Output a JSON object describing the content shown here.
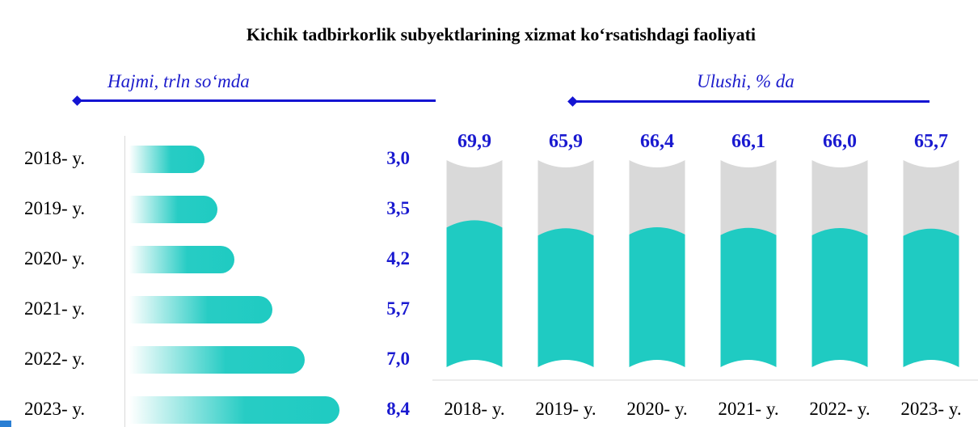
{
  "title": "Kichik tadbirkorlik subyektlarining xizmat ko‘rsatishdagi faoliyati",
  "colors": {
    "accent": "#1414d2",
    "bar": "#1fcbc2",
    "bar_bg": "#d9d9d9",
    "value_text": "#1a1ad0"
  },
  "chart_data": [
    {
      "type": "bar",
      "orientation": "horizontal",
      "title": "",
      "xlabel": "Hajmi, trln so‘mda",
      "ylabel": "",
      "categories": [
        "2018- y.",
        "2019- y.",
        "2020- y.",
        "2021- y.",
        "2022- y.",
        "2023- y."
      ],
      "values": [
        3.0,
        3.5,
        4.2,
        5.7,
        7.0,
        8.4
      ],
      "value_labels": [
        "3,0",
        "3,5",
        "4,2",
        "5,7",
        "7,0",
        "8,4"
      ],
      "grid": false
    },
    {
      "type": "bar",
      "orientation": "vertical",
      "title": "",
      "xlabel": "",
      "ylabel": "Ulushi, % da",
      "categories": [
        "2018- y.",
        "2019- y.",
        "2020- y.",
        "2021- y.",
        "2022- y.",
        "2023- y."
      ],
      "values": [
        69.9,
        65.9,
        66.4,
        66.1,
        66.0,
        65.7
      ],
      "value_labels": [
        "69,9",
        "65,9",
        "66,4",
        "66,1",
        "66,0",
        "65,7"
      ],
      "ylim": [
        0,
        100
      ],
      "grid": false
    }
  ]
}
